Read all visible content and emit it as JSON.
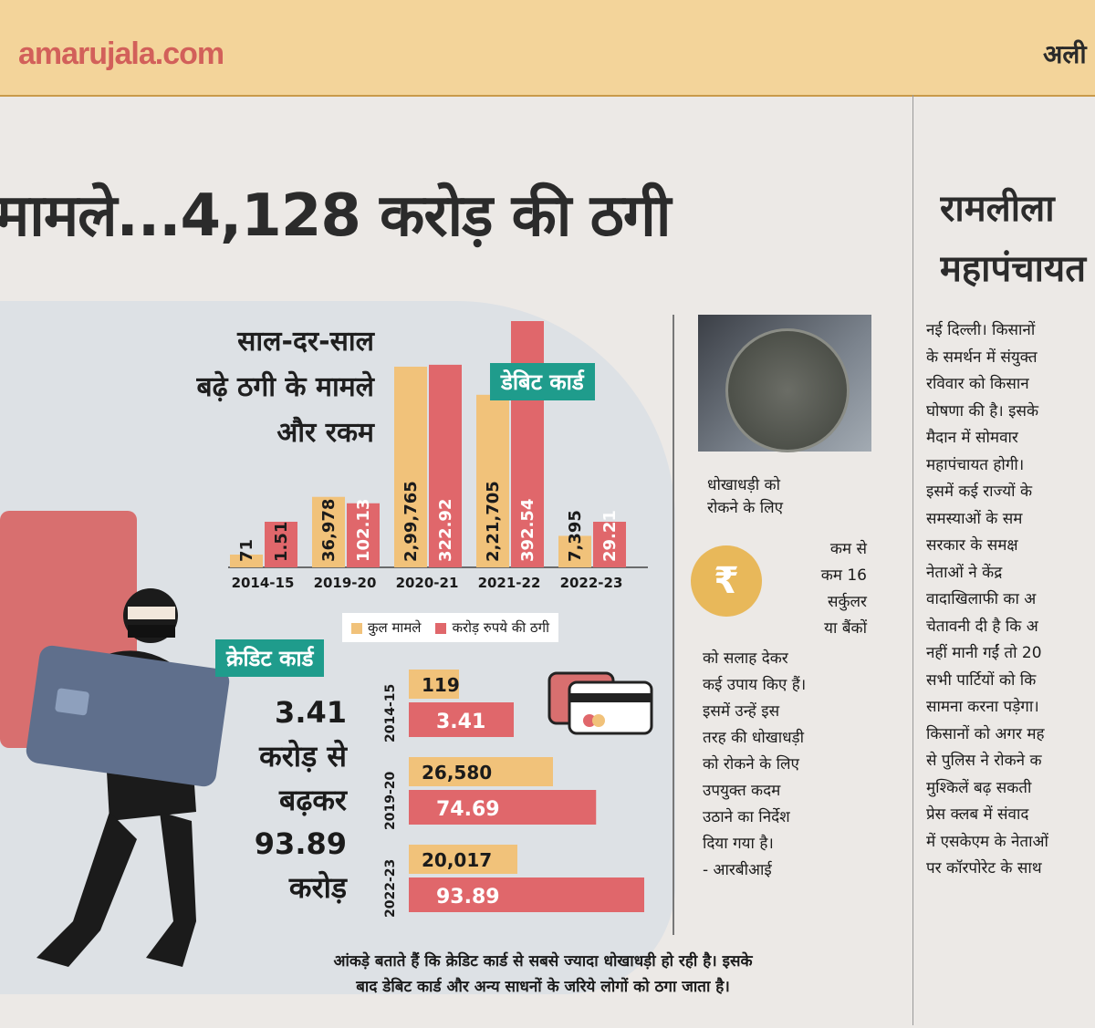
{
  "header": {
    "brand": "amarujala.com",
    "right_fragment": "अली"
  },
  "headline": "मामले...4,128 करोड़ की ठगी",
  "side_headline": [
    "रामलीला",
    "महापंचायत"
  ],
  "subtitle": [
    "साल-दर-साल",
    "बढ़े ठगी के मामले",
    "और रकम"
  ],
  "debit_tag": "डेबिट कार्ड",
  "credit_tag": "क्रेडिट कार्ड",
  "legend": {
    "cases": "कुल मामले",
    "amount": "करोड़ रुपये की ठगी"
  },
  "colors": {
    "cases": "#f1c27a",
    "amount": "#e0676b",
    "tag": "#1f9c8c"
  },
  "chart_data": [
    {
      "type": "bar",
      "categories": [
        "2014-15",
        "2019-20",
        "2020-21",
        "2021-22",
        "2022-23"
      ],
      "series": [
        {
          "name": "कुल मामले",
          "values": [
            71,
            36978,
            299765,
            221705,
            7395
          ],
          "labels": [
            "71",
            "36,978",
            "2,99,765",
            "2,21,705",
            "7,395"
          ]
        },
        {
          "name": "करोड़ रुपये की ठगी",
          "values": [
            1.51,
            102.13,
            322.92,
            392.54,
            29.21
          ],
          "labels": [
            "1.51",
            "102.13",
            "322.92",
            "392.54",
            "29.21"
          ]
        }
      ]
    },
    {
      "type": "bar",
      "orientation": "horizontal",
      "categories": [
        "2014-15",
        "2019-20",
        "2022-23"
      ],
      "series": [
        {
          "name": "कुल मामले",
          "values": [
            119,
            26580,
            20017
          ],
          "labels": [
            "119",
            "26,580",
            "20,017"
          ]
        },
        {
          "name": "करोड़ रुपये की ठगी",
          "values": [
            3.41,
            74.69,
            93.89
          ],
          "labels": [
            "3.41",
            "74.69",
            "93.89"
          ]
        }
      ]
    }
  ],
  "credit_text": [
    "3.41",
    "करोड़ से",
    "बढ़कर",
    "93.89",
    "करोड़"
  ],
  "note": [
    "आंकड़े बताते हैं कि क्रेडिट कार्ड से सबसे ज्यादा धोखाधड़ी हो रही है। इसके",
    "बाद डेबिट कार्ड और अन्य साधनों के जरिये लोगों को ठगा जाता है।"
  ],
  "rbi": {
    "text1": [
      "धोखाधड़ी को",
      "रोकने के लिए"
    ],
    "coin_symbol": "₹",
    "text2": [
      "कम से",
      "कम 16",
      "सर्कुलर",
      "या बैंकों"
    ],
    "text3": [
      "को सलाह देकर",
      "कई उपाय किए हैं।",
      "इसमें उन्हें इस",
      "तरह की धोखाधड़ी",
      "को रोकने के लिए",
      "उपयुक्त कदम",
      "उठाने का निर्देश",
      "दिया गया है।",
      "- आरबीआई"
    ]
  },
  "side_body": [
    "नई दिल्ली। किसानों",
    "के समर्थन में संयुक्त",
    "रविवार को किसान",
    "घोषणा की है। इसके",
    "मैदान में सोमवार",
    "महापंचायत होगी।",
    "इसमें कई राज्यों के",
    "समस्याओं के सम",
    "सरकार के समक्ष",
    "नेताओं ने केंद्र",
    "वादाखिलाफी का अ",
    "चेतावनी दी है कि अ",
    "नहीं मानी गईं तो 20",
    "सभी पार्टियों को कि",
    "सामना करना पड़ेगा।",
    "किसानों को अगर मह",
    "से पुलिस ने रोकने क",
    "मुश्किलें बढ़ सकती",
    "प्रेस क्लब में संवाद",
    "में एसकेएम के नेताओं",
    "पर कॉरपोरेट के साथ"
  ]
}
